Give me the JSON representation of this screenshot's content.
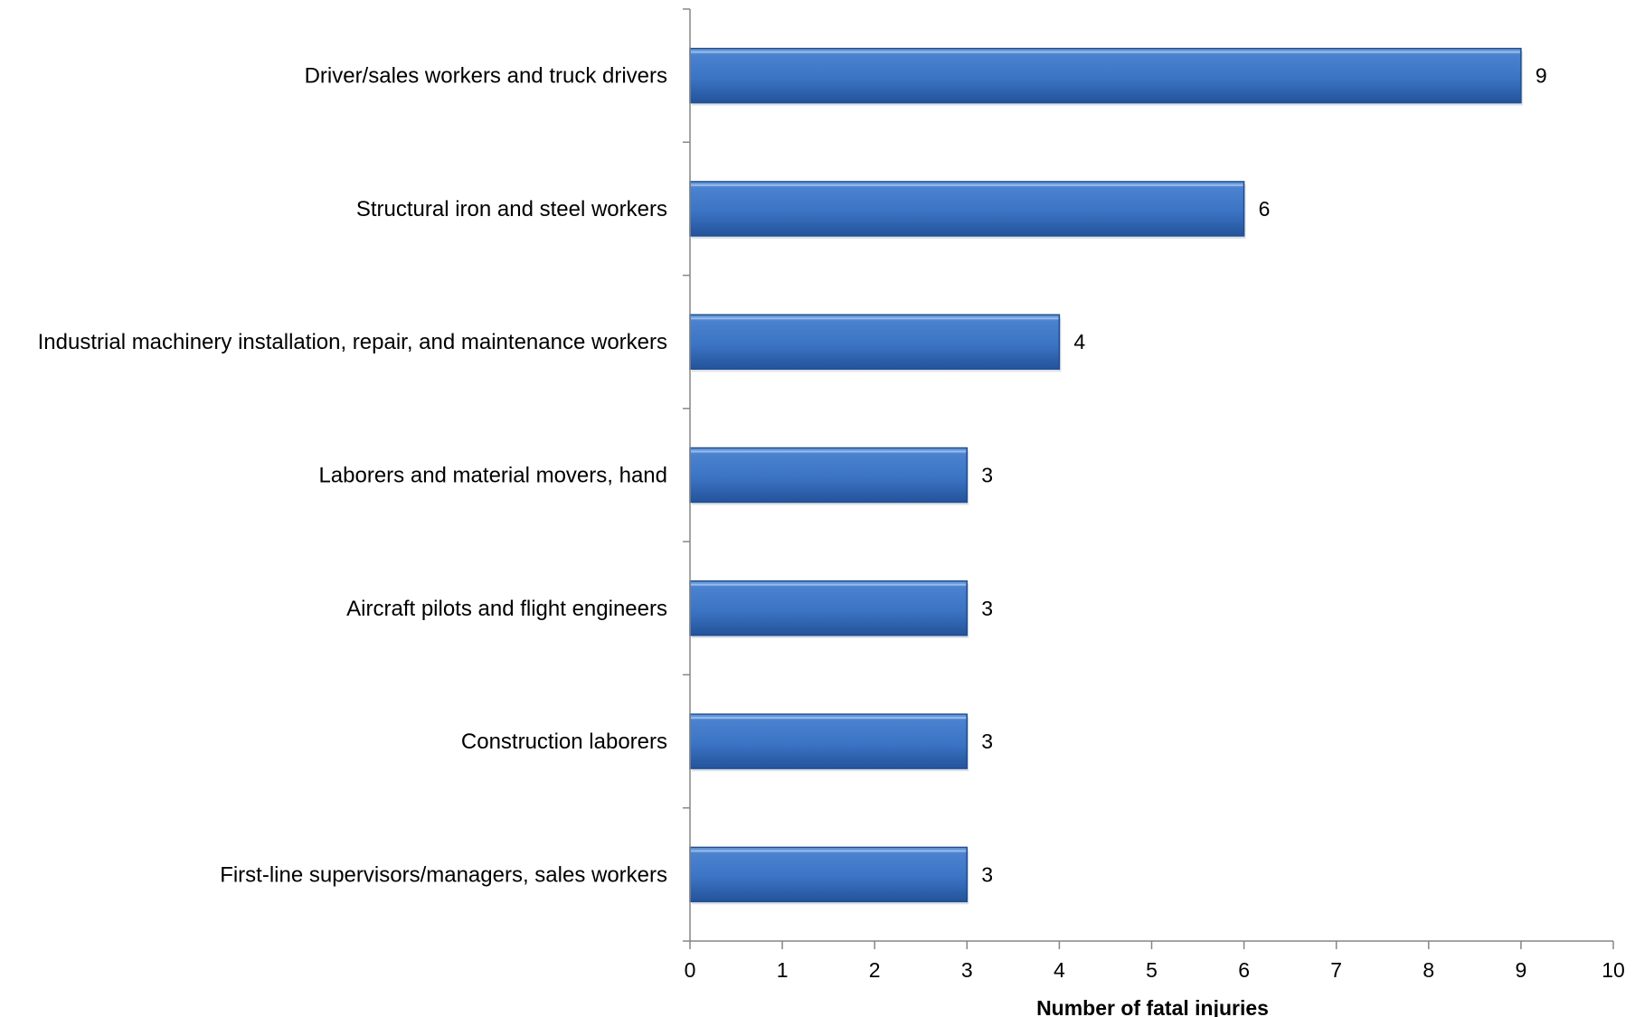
{
  "chart_data": {
    "type": "bar",
    "orientation": "horizontal",
    "categories": [
      "Driver/sales workers and truck drivers",
      "Structural iron and steel workers",
      "Industrial machinery installation, repair, and maintenance workers",
      "Laborers and material movers, hand",
      "Aircraft pilots and flight engineers",
      "Construction laborers",
      "First-line supervisors/managers, sales workers"
    ],
    "values": [
      9,
      6,
      4,
      3,
      3,
      3,
      3
    ],
    "data_labels": [
      "9",
      "6",
      "4",
      "3",
      "3",
      "3",
      "3"
    ],
    "xlabel": "Number of fatal injuries",
    "ylabel": "",
    "xlim": [
      0,
      10
    ],
    "x_ticks": [
      "0",
      "1",
      "2",
      "3",
      "4",
      "5",
      "6",
      "7",
      "8",
      "9",
      "10"
    ],
    "grid": false,
    "legend": "none",
    "colors": {
      "bar_fill": "#3b74c4",
      "bar_light": "#6ea0e0",
      "bar_dark": "#24539a",
      "bar_outline": "#1f4d8f",
      "axis": "#868686",
      "text": "#000000"
    }
  }
}
